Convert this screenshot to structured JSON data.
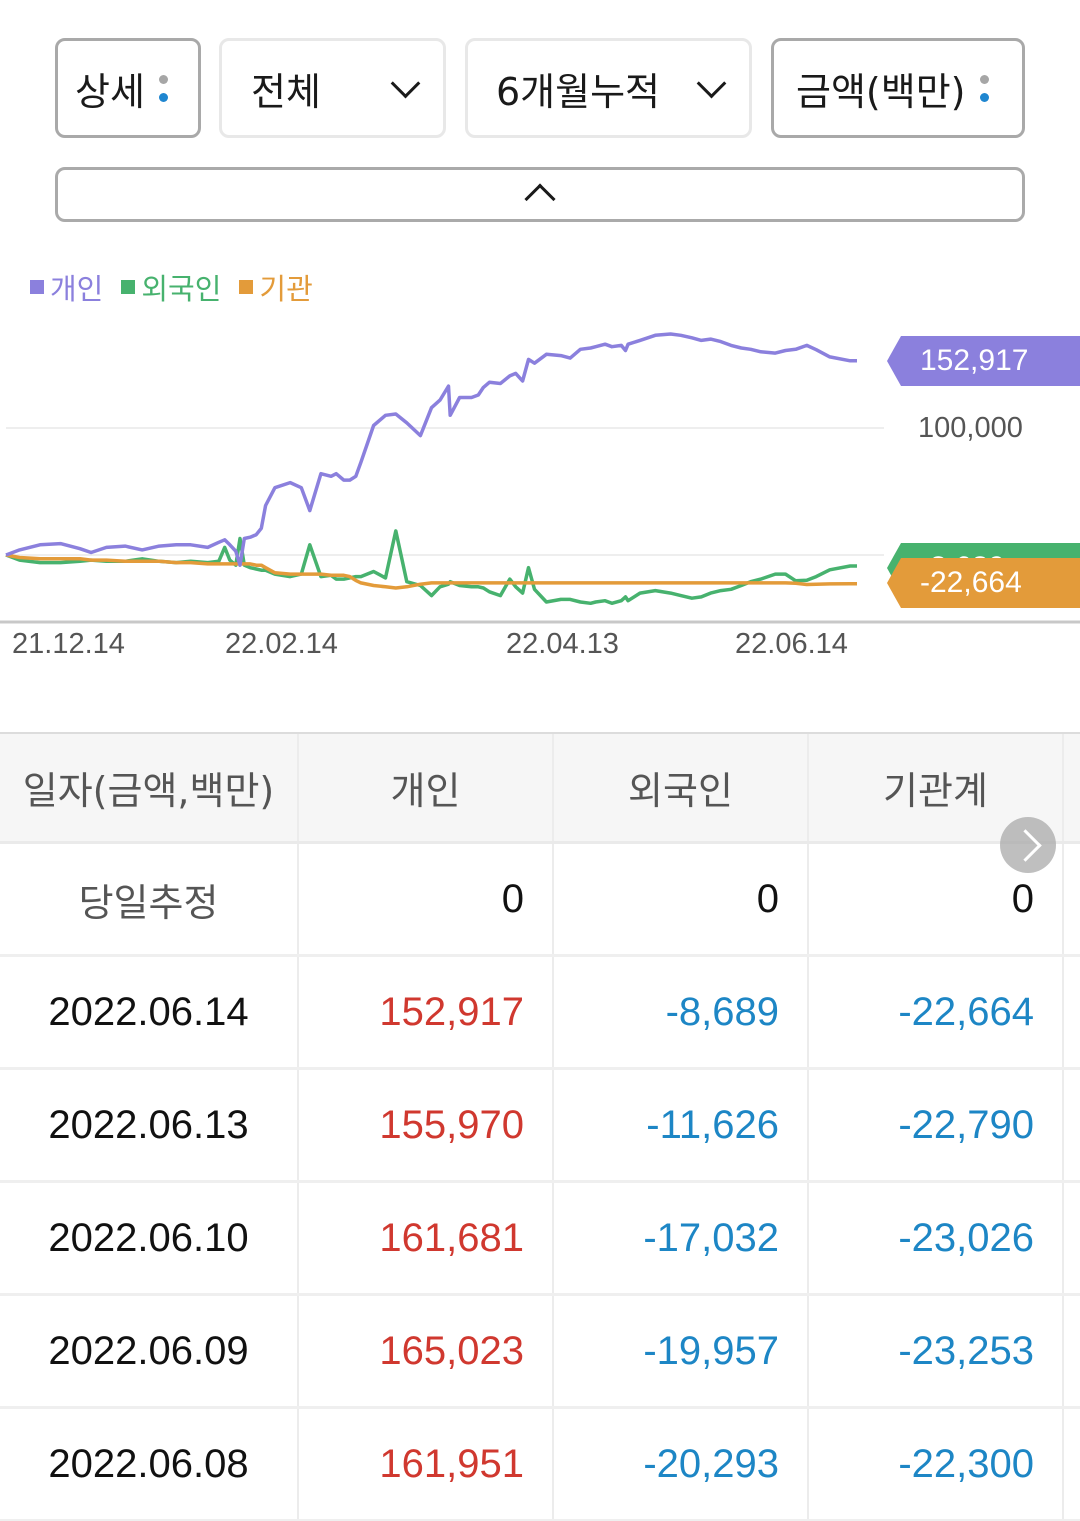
{
  "filters": {
    "detail": {
      "label": "상세",
      "icon": "more-vertical-dots-icon"
    },
    "scope": {
      "label": "전체",
      "icon": "chevron-down-icon"
    },
    "period": {
      "label": "6개월누적",
      "icon": "chevron-down-icon"
    },
    "unit": {
      "label": "금액(백만)",
      "icon": "more-vertical-dots-icon"
    },
    "collapse_icon": "chevron-up-icon"
  },
  "legend": [
    {
      "label": "개인",
      "color": "#8b80dd"
    },
    {
      "label": "외국인",
      "color": "#47b26e"
    },
    {
      "label": "기관",
      "color": "#e39b3a"
    }
  ],
  "chart_data": {
    "type": "line",
    "title": "",
    "xlabel": "",
    "ylabel": "금액(백만)",
    "x_ticks": [
      "21.12.14",
      "22.02.14",
      "22.04.13",
      "22.06.14"
    ],
    "y_ticks": [
      "100,000"
    ],
    "gridlines": [
      0,
      100000
    ],
    "grid": true,
    "legend_position": "top-left",
    "ylim": [
      -50000,
      185000
    ],
    "last_value_tags": [
      {
        "series": "개인",
        "value": "152,917",
        "color": "#8b80dd"
      },
      {
        "series": "외국인",
        "value": "-8,689",
        "color": "#47b26e"
      },
      {
        "series": "기관",
        "value": "-22,664",
        "color": "#e39b3a"
      }
    ],
    "x": [
      0,
      0.016,
      0.04,
      0.064,
      0.087,
      0.1,
      0.118,
      0.14,
      0.16,
      0.18,
      0.2,
      0.217,
      0.237,
      0.25,
      0.257,
      0.263,
      0.27,
      0.275,
      0.28,
      0.287,
      0.294,
      0.3,
      0.305,
      0.316,
      0.334,
      0.347,
      0.357,
      0.37,
      0.382,
      0.388,
      0.397,
      0.404,
      0.411,
      0.417,
      0.432,
      0.446,
      0.458,
      0.471,
      0.487,
      0.5,
      0.51,
      0.52,
      0.522,
      0.533,
      0.547,
      0.555,
      0.561,
      0.568,
      0.581,
      0.592,
      0.599,
      0.607,
      0.614,
      0.621,
      0.635,
      0.652,
      0.663,
      0.675,
      0.687,
      0.693,
      0.704,
      0.712,
      0.723,
      0.728,
      0.731,
      0.745,
      0.763,
      0.781,
      0.793,
      0.806,
      0.817,
      0.828,
      0.84,
      0.852,
      0.864,
      0.875,
      0.887,
      0.904,
      0.916,
      0.928,
      0.941,
      0.952,
      0.968,
      0.992,
      1.0
    ],
    "series": [
      {
        "name": "개인",
        "color": "#8b80dd",
        "values": [
          0,
          4000,
          8000,
          9000,
          5000,
          2000,
          6000,
          7000,
          4000,
          7000,
          8000,
          8000,
          6000,
          10000,
          12000,
          8000,
          3000,
          -8000,
          13000,
          14000,
          16000,
          21000,
          39000,
          53000,
          57000,
          53000,
          35000,
          64000,
          62000,
          64000,
          59000,
          59000,
          62000,
          73000,
          102000,
          110000,
          111000,
          104000,
          94000,
          116000,
          122000,
          133000,
          110000,
          124000,
          124000,
          126000,
          132000,
          136000,
          135000,
          141000,
          143000,
          137000,
          154000,
          151000,
          158000,
          157000,
          155000,
          162000,
          163000,
          164000,
          166000,
          164000,
          165000,
          161000,
          166000,
          169000,
          173000,
          174000,
          173000,
          171000,
          169000,
          170000,
          168000,
          165000,
          163000,
          162000,
          160000,
          159000,
          161000,
          161951,
          165023,
          161681,
          155970,
          152917,
          152917
        ]
      },
      {
        "name": "외국인",
        "color": "#47b26e",
        "values": [
          0,
          -4000,
          -6000,
          -6000,
          -5000,
          -4000,
          -5000,
          -5000,
          -3000,
          -5000,
          -6000,
          -5000,
          -6000,
          -5000,
          6000,
          -4000,
          -8000,
          13000,
          -8000,
          -10000,
          -11000,
          -12000,
          -12000,
          -15000,
          -17000,
          -15000,
          8000,
          -17000,
          -16000,
          -19000,
          -19000,
          -18000,
          -17000,
          -17000,
          -13000,
          -18000,
          19000,
          -21000,
          -24000,
          -32000,
          -25000,
          -23000,
          -21000,
          -24000,
          -25000,
          -25000,
          -26000,
          -29000,
          -32000,
          -19000,
          -25000,
          -30000,
          -10000,
          -27000,
          -37000,
          -35000,
          -35000,
          -37000,
          -38000,
          -37000,
          -36000,
          -38000,
          -36000,
          -33000,
          -36000,
          -30000,
          -28000,
          -30000,
          -32000,
          -34000,
          -33000,
          -30000,
          -28000,
          -27000,
          -24000,
          -21000,
          -19000,
          -15000,
          -15000,
          -20293,
          -19957,
          -17032,
          -11626,
          -8689,
          -8689
        ]
      },
      {
        "name": "기관",
        "color": "#e39b3a",
        "values": [
          0,
          -2000,
          -3000,
          -3000,
          -3000,
          -4000,
          -4000,
          -5000,
          -5000,
          -5000,
          -6000,
          -6000,
          -7000,
          -7000,
          -7000,
          -7000,
          -7000,
          -7000,
          -7000,
          -7000,
          -8000,
          -8000,
          -10000,
          -14000,
          -15000,
          -15000,
          -15000,
          -15000,
          -16000,
          -16000,
          -16000,
          -17000,
          -20000,
          -22000,
          -24000,
          -25000,
          -26000,
          -25000,
          -23000,
          -22000,
          -22000,
          -22000,
          -22000,
          -22000,
          -22000,
          -22000,
          -22000,
          -22000,
          -22000,
          -22000,
          -22000,
          -22000,
          -22000,
          -22000,
          -22000,
          -22000,
          -22000,
          -22000,
          -22000,
          -22000,
          -22000,
          -22000,
          -22000,
          -22000,
          -22000,
          -22000,
          -22000,
          -22000,
          -22000,
          -22000,
          -22000,
          -22000,
          -22000,
          -22000,
          -22000,
          -22000,
          -22000,
          -22000,
          -22000,
          -22300,
          -23253,
          -23026,
          -22790,
          -22664,
          -22664
        ]
      }
    ]
  },
  "table": {
    "headers": [
      "일자(금액,백만)",
      "개인",
      "외국인",
      "기관계"
    ],
    "estimate_row": {
      "label": "당일추정",
      "individual": "0",
      "foreign": "0",
      "institution": "0"
    },
    "rows": [
      {
        "date": "2022.06.14",
        "individual": "152,917",
        "foreign": "-8,689",
        "institution": "-22,664"
      },
      {
        "date": "2022.06.13",
        "individual": "155,970",
        "foreign": "-11,626",
        "institution": "-22,790"
      },
      {
        "date": "2022.06.10",
        "individual": "161,681",
        "foreign": "-17,032",
        "institution": "-23,026"
      },
      {
        "date": "2022.06.09",
        "individual": "165,023",
        "foreign": "-19,957",
        "institution": "-23,253"
      },
      {
        "date": "2022.06.08",
        "individual": "161,951",
        "foreign": "-20,293",
        "institution": "-22,300"
      }
    ],
    "scroll_icon": "chevron-right-icon"
  },
  "colors": {
    "positive": "#d0382f",
    "negative": "#1d86c5",
    "individual": "#8b80dd",
    "foreign": "#47b26e",
    "institution": "#e39b3a"
  }
}
